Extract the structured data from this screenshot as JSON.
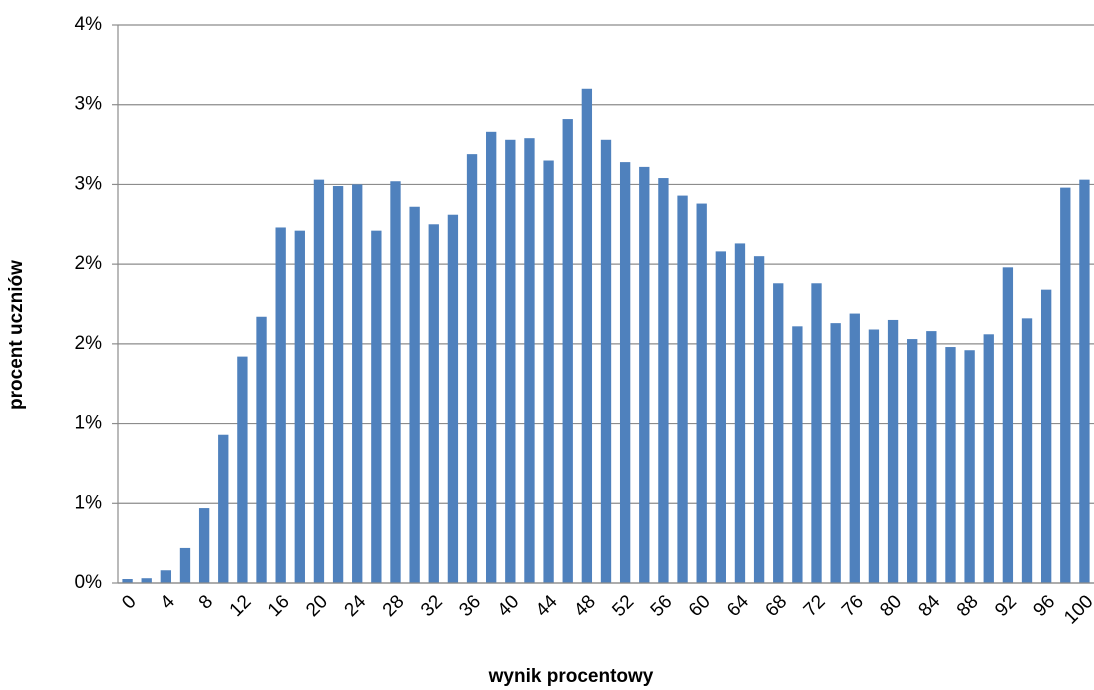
{
  "chart_data": {
    "type": "bar",
    "x_label": "wynik procentowy",
    "y_label": "procent uczniów",
    "categories": [
      "0",
      null,
      "4",
      null,
      "8",
      null,
      "12",
      null,
      "16",
      null,
      "20",
      null,
      "24",
      null,
      "28",
      null,
      "32",
      null,
      "36",
      null,
      "40",
      null,
      "44",
      null,
      "48",
      null,
      "52",
      null,
      "56",
      null,
      "60",
      null,
      "64",
      null,
      "68",
      null,
      "72",
      null,
      "76",
      null,
      "80",
      null,
      "84",
      null,
      "88",
      null,
      "92",
      null,
      "96",
      null,
      "100"
    ],
    "values": [
      0.025,
      0.03,
      0.08,
      0.22,
      0.47,
      0.93,
      1.42,
      1.67,
      2.23,
      2.21,
      2.53,
      2.49,
      2.5,
      2.21,
      2.52,
      2.36,
      2.25,
      2.31,
      2.69,
      2.83,
      2.78,
      2.79,
      2.65,
      2.91,
      3.1,
      2.78,
      2.64,
      2.61,
      2.54,
      2.43,
      2.38,
      2.08,
      2.13,
      2.05,
      1.88,
      1.61,
      1.88,
      1.63,
      1.69,
      1.59,
      1.65,
      1.53,
      1.58,
      1.48,
      1.46,
      1.56,
      1.98,
      1.66,
      1.84,
      2.48,
      2.53
    ],
    "color": "#4f81bd",
    "ylim": [
      0,
      3.5
    ],
    "yticks": [
      {
        "value": 0,
        "label": "0%"
      },
      {
        "value": 0.5,
        "label": "1%"
      },
      {
        "value": 1,
        "label": "1%"
      },
      {
        "value": 1.5,
        "label": "2%"
      },
      {
        "value": 2,
        "label": "2%"
      },
      {
        "value": 2.5,
        "label": "3%"
      },
      {
        "value": 3,
        "label": "3%"
      },
      {
        "value": 3.5,
        "label": "4%"
      }
    ],
    "grid": true
  }
}
